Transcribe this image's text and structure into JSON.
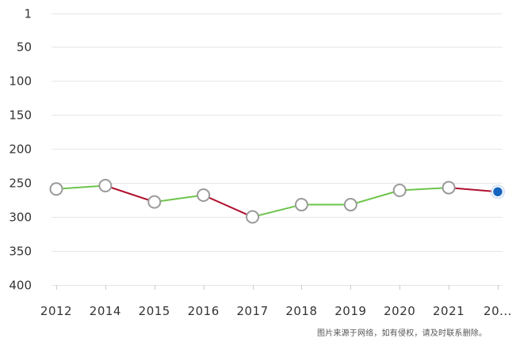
{
  "chart_data": {
    "type": "line",
    "categories": [
      "2012",
      "2014",
      "2015",
      "2016",
      "2017",
      "2018",
      "2019",
      "2020",
      "2021",
      "20..."
    ],
    "values": [
      259,
      254,
      278,
      268,
      300,
      282,
      282,
      261,
      257,
      263
    ],
    "y_tick_labels": [
      "1",
      "50",
      "100",
      "150",
      "200",
      "250",
      "300",
      "350",
      "400"
    ],
    "y_tick_values": [
      1,
      50,
      100,
      150,
      200,
      250,
      300,
      350,
      400
    ],
    "ylim": [
      1,
      400
    ],
    "y_inverted": true,
    "grid": true,
    "legend": "none",
    "colors": {
      "rise": "#6cc44a",
      "fall": "#b0102e",
      "marker_fill": "#ffffff",
      "marker_stroke": "#9a9a9a",
      "highlight": "#1565c0",
      "highlight_halo": "#bcd4f0"
    },
    "highlighted_index": 9
  },
  "watermark": "图片来源于网络，如有侵权，请及时联系删除。"
}
